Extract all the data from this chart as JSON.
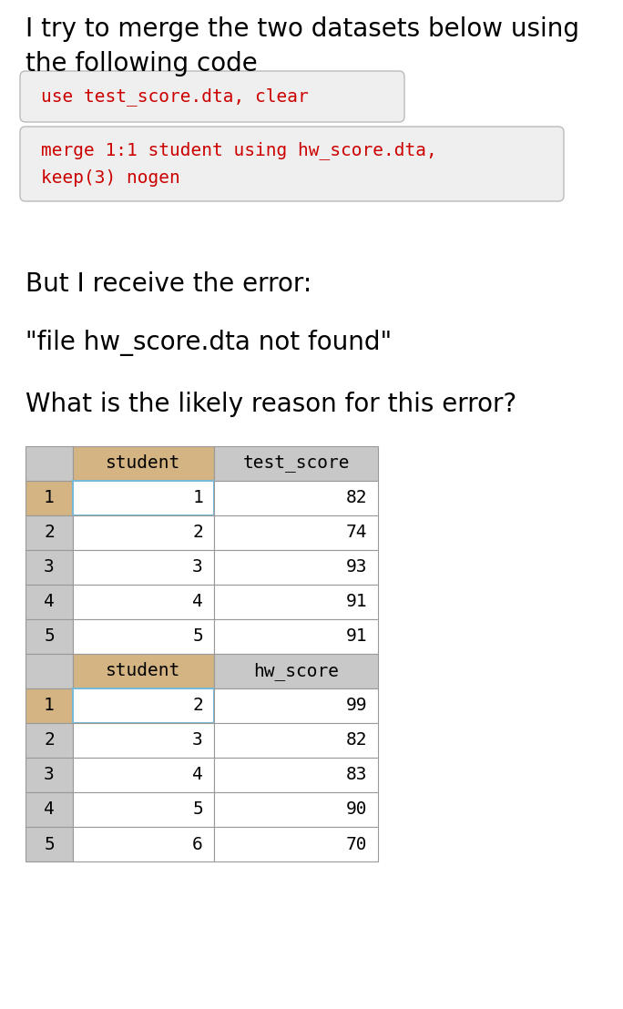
{
  "title_line1": "I try to merge the two datasets below using",
  "title_line2": "the following code",
  "code_line1": "use test_score.dta, clear",
  "code_line2a": "merge 1:1 student using hw_score.dta,",
  "code_line2b": "keep(3) nogen",
  "error_intro": "But I receive the error:",
  "error_msg": "\"file hw_score.dta not found\"",
  "question": "What is the likely reason for this error?",
  "table1_col1_header": "student",
  "table1_col2_header": "test_score",
  "table1_index": [
    "1",
    "2",
    "3",
    "4",
    "5"
  ],
  "table1_student": [
    "1",
    "2",
    "3",
    "4",
    "5"
  ],
  "table1_score": [
    "82",
    "74",
    "93",
    "91",
    "91"
  ],
  "table2_col1_header": "student",
  "table2_col2_header": "hw_score",
  "table2_index": [
    "1",
    "2",
    "3",
    "4",
    "5"
  ],
  "table2_student": [
    "2",
    "3",
    "4",
    "5",
    "6"
  ],
  "table2_score": [
    "99",
    "82",
    "83",
    "90",
    "70"
  ],
  "bg_color": "#ffffff",
  "code_bg": "#efefef",
  "code_color": "#cc0000",
  "text_color": "#000000",
  "table_header_tan": "#d4b483",
  "table_header_grey": "#c8c8c8",
  "table_index_bg": "#c8c8c8",
  "table_data_bg": "#ffffff",
  "table_border_color": "#999999",
  "table_highlight_border": "#7ab8d9",
  "title_fontsize": 20,
  "body_fontsize": 20,
  "code_fontsize": 14,
  "table_fontsize": 14
}
